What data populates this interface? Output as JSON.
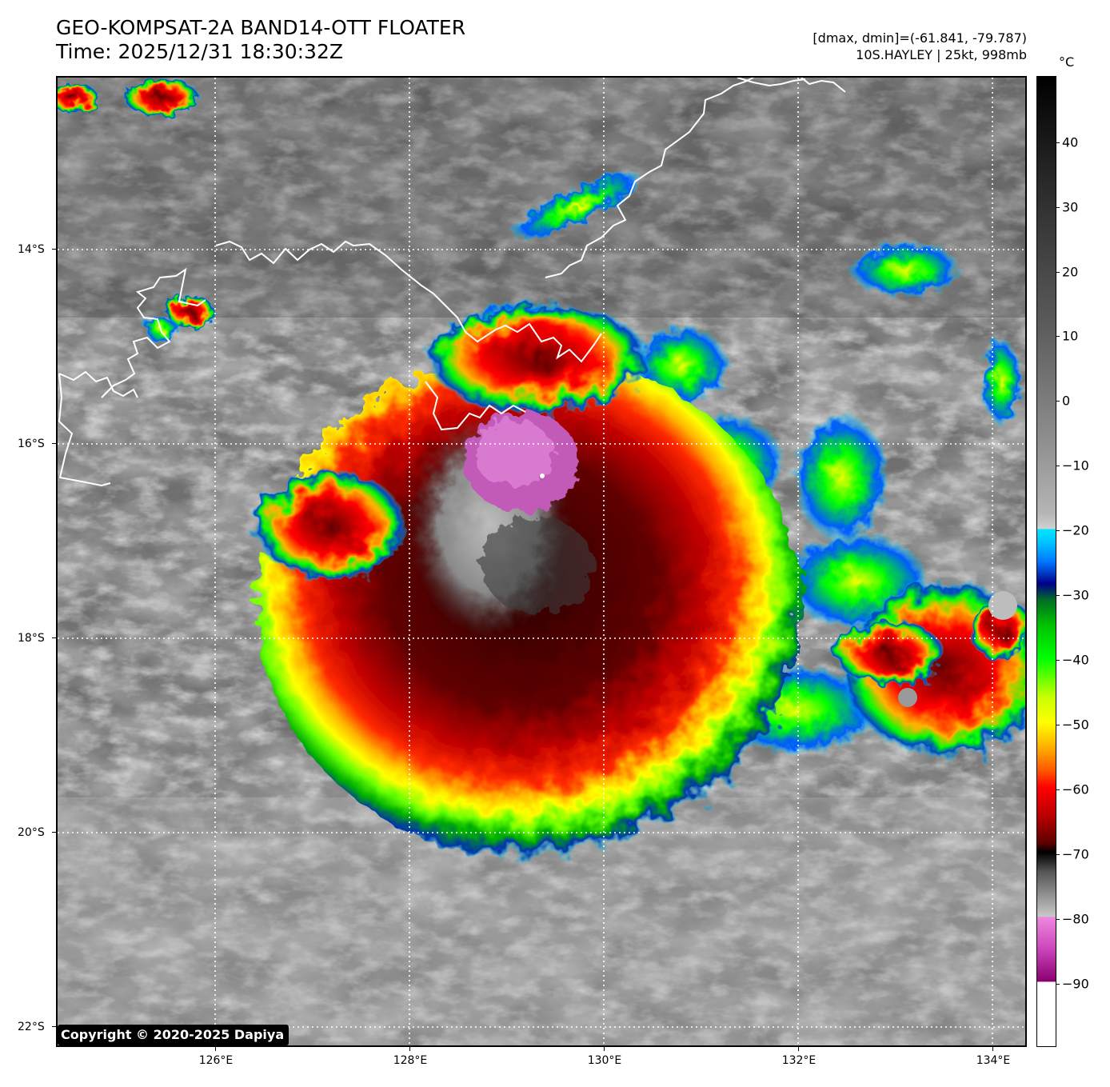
{
  "header": {
    "title_line1": "GEO-KOMPSAT-2A BAND14-OTT FLOATER",
    "title_line2": "Time: 2025/12/31 18:30:32Z",
    "info_line1": "[dmax, dmin]=(-61.841, -79.787)",
    "info_line2": "10S.HAYLEY | 25kt, 998mb"
  },
  "map": {
    "lon_labels": [
      "126°E",
      "128°E",
      "130°E",
      "132°E",
      "134°E"
    ],
    "lat_labels": [
      "14°S",
      "16°S",
      "18°S",
      "20°S",
      "22°S"
    ],
    "gridlines": "dotted white",
    "copyright": "Copyright © 2020-2025 Dapiya"
  },
  "colorbar": {
    "unit": "°C",
    "tick_labels": [
      "40",
      "30",
      "20",
      "10",
      "0",
      "−10",
      "−20",
      "−30",
      "−40",
      "−50",
      "−60",
      "−70",
      "−80",
      "−90"
    ],
    "colors": {
      "warm": "#000000",
      "cold_gray": "#c8c8c8",
      "cyan": "#00e5ff",
      "blue": "#0077ff",
      "green": "#00ff00",
      "yellow": "#ffff00",
      "orange": "#ffb400",
      "red": "#ff0000",
      "dark_red": "#600000",
      "magenta": "#cc44bb",
      "coldest": "#ffffff"
    }
  },
  "storm": {
    "name": "10S.HAYLEY",
    "center_lon": 129.3,
    "center_lat": -16.4
  }
}
